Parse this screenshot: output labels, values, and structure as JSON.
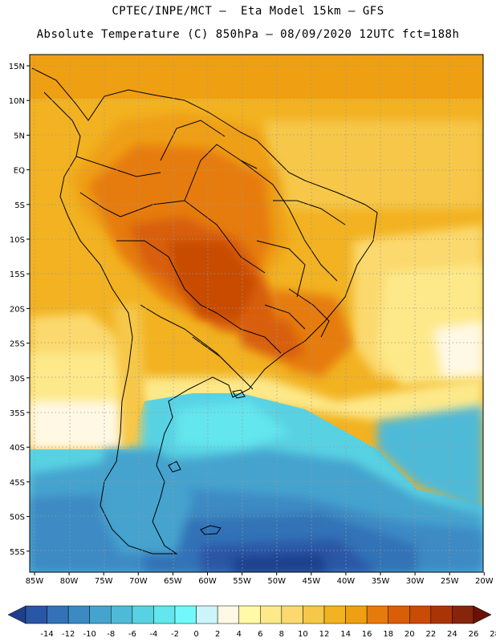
{
  "header": {
    "line1": "CPTEC/INPE/MCT –  Eta Model 15km – GFS",
    "line2": "Absolute Temperature (C) 850hPa – 08/09/2020 12UTC fct=188h"
  },
  "map": {
    "lat_labels": [
      "15N",
      "10N",
      "5N",
      "EQ",
      "5S",
      "10S",
      "15S",
      "20S",
      "25S",
      "30S",
      "35S",
      "40S",
      "45S",
      "50S",
      "55S"
    ],
    "lon_labels": [
      "85W",
      "80W",
      "75W",
      "70W",
      "65W",
      "60W",
      "55W",
      "50W",
      "45W",
      "40W",
      "35W",
      "30W",
      "25W",
      "20W"
    ]
  },
  "colorbar": {
    "labels": [
      "-14",
      "-12",
      "-10",
      "-8",
      "-6",
      "-4",
      "-2",
      "0",
      "2",
      "4",
      "6",
      "8",
      "10",
      "12",
      "14",
      "16",
      "18",
      "20",
      "22",
      "24",
      "26",
      "28"
    ],
    "colors": [
      "#1f3f8c",
      "#2a56a6",
      "#3372b6",
      "#3c8ac4",
      "#45a3ce",
      "#4fbad8",
      "#58d2e3",
      "#63e6ee",
      "#72f8fb",
      "#ccf5fb",
      "#fff8e4",
      "#fff9a8",
      "#fde98a",
      "#fbd96e",
      "#f6c748",
      "#f2b221",
      "#ef9f12",
      "#e67b0c",
      "#d85e08",
      "#c84b06",
      "#a93507",
      "#87250a",
      "#6a1108"
    ]
  }
}
